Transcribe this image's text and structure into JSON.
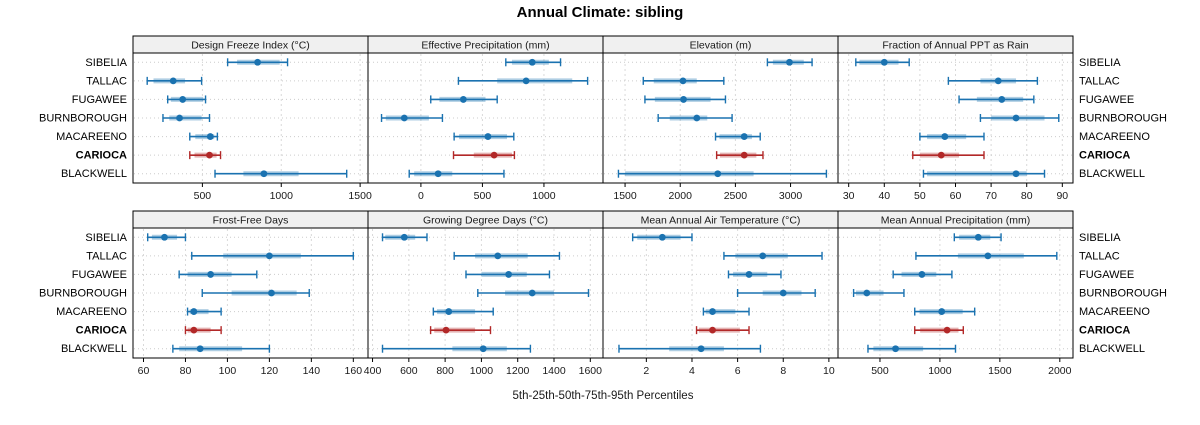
{
  "title": "Annual Climate: sibling",
  "caption": "5th-25th-50th-75th-95th Percentiles",
  "colors": {
    "primary": "#1a72b0",
    "highlight": "#b22828",
    "band_opacity": "0.35",
    "grid_h": "#cccccc",
    "grid_v": "#d9d9d9",
    "header_bg": "#f0f0f0",
    "panel_border": "#000000",
    "tick_text": "#1a1a1a",
    "header_text": "#1a1a1a"
  },
  "categories": [
    "SIBELIA",
    "TALLAC",
    "FUGAWEE",
    "BURNBOROUGH",
    "MACAREENO",
    "CARIOCA",
    "BLACKWELL"
  ],
  "highlighted_category": "CARIOCA",
  "chart_data": {
    "type": "dotplot-percentiles",
    "percentile_order": [
      "p5",
      "p25",
      "p50",
      "p75",
      "p95"
    ],
    "legend_position": "none",
    "grid": "on",
    "panels": [
      {
        "title": "Design Freeze Index (°C)",
        "row": 0,
        "col": 0,
        "xlim": [
          60,
          1550
        ],
        "ticks": [
          500,
          1000,
          1500
        ],
        "series": [
          {
            "name": "SIBELIA",
            "p": [
              660,
              720,
              850,
              990,
              1040
            ]
          },
          {
            "name": "TALLAC",
            "p": [
              150,
              190,
              315,
              390,
              495
            ]
          },
          {
            "name": "FUGAWEE",
            "p": [
              280,
              300,
              375,
              505,
              520
            ]
          },
          {
            "name": "BURNBOROUGH",
            "p": [
              250,
              290,
              355,
              495,
              545
            ]
          },
          {
            "name": "MACAREENO",
            "p": [
              420,
              455,
              550,
              575,
              595
            ]
          },
          {
            "name": "CARIOCA",
            "p": [
              420,
              450,
              545,
              590,
              615
            ]
          },
          {
            "name": "BLACKWELL",
            "p": [
              580,
              760,
              890,
              1110,
              1415
            ]
          }
        ]
      },
      {
        "title": "Effective Precipitation (mm)",
        "row": 0,
        "col": 1,
        "xlim": [
          -430,
          1480
        ],
        "ticks": [
          0,
          500,
          1000
        ],
        "series": [
          {
            "name": "SIBELIA",
            "p": [
              690,
              740,
              905,
              1040,
              1135
            ]
          },
          {
            "name": "TALLAC",
            "p": [
              305,
              620,
              855,
              1230,
              1355
            ]
          },
          {
            "name": "FUGAWEE",
            "p": [
              80,
              150,
              345,
              525,
              620
            ]
          },
          {
            "name": "BURNBOROUGH",
            "p": [
              -320,
              -285,
              -135,
              65,
              175
            ]
          },
          {
            "name": "MACAREENO",
            "p": [
              270,
              310,
              545,
              700,
              755
            ]
          },
          {
            "name": "CARIOCA",
            "p": [
              265,
              430,
              595,
              740,
              760
            ]
          },
          {
            "name": "BLACKWELL",
            "p": [
              -95,
              -55,
              140,
              255,
              675
            ]
          }
        ]
      },
      {
        "title": "Elevation (m)",
        "row": 0,
        "col": 2,
        "xlim": [
          1300,
          3430
        ],
        "ticks": [
          1500,
          2000,
          2500,
          3000
        ],
        "series": [
          {
            "name": "SIBELIA",
            "p": [
              2790,
              2840,
              2990,
              3120,
              3195
            ]
          },
          {
            "name": "TALLAC",
            "p": [
              1665,
              1760,
              2025,
              2150,
              2395
            ]
          },
          {
            "name": "FUGAWEE",
            "p": [
              1680,
              1770,
              2030,
              2275,
              2410
            ]
          },
          {
            "name": "BURNBOROUGH",
            "p": [
              1800,
              1905,
              2150,
              2245,
              2470
            ]
          },
          {
            "name": "MACAREENO",
            "p": [
              2320,
              2355,
              2580,
              2650,
              2725
            ]
          },
          {
            "name": "CARIOCA",
            "p": [
              2330,
              2360,
              2580,
              2690,
              2750
            ]
          },
          {
            "name": "BLACKWELL",
            "p": [
              1440,
              1500,
              2340,
              2665,
              3325
            ]
          }
        ]
      },
      {
        "title": "Fraction of Annual PPT as Rain",
        "row": 0,
        "col": 3,
        "xlim": [
          27,
          93
        ],
        "ticks": [
          30,
          40,
          50,
          60,
          70,
          80,
          90
        ],
        "series": [
          {
            "name": "SIBELIA",
            "p": [
              32,
              33,
              40,
              44,
              47
            ]
          },
          {
            "name": "TALLAC",
            "p": [
              58,
              67,
              72,
              77,
              83
            ]
          },
          {
            "name": "FUGAWEE",
            "p": [
              61,
              66,
              73,
              79,
              82
            ]
          },
          {
            "name": "BURNBOROUGH",
            "p": [
              67,
              70,
              77,
              85,
              89
            ]
          },
          {
            "name": "MACAREENO",
            "p": [
              50,
              52,
              57,
              63,
              68
            ]
          },
          {
            "name": "CARIOCA",
            "p": [
              48,
              50,
              56,
              61,
              68
            ]
          },
          {
            "name": "BLACKWELL",
            "p": [
              51,
              52,
              77,
              80,
              85
            ]
          }
        ]
      },
      {
        "title": "Frost-Free Days",
        "row": 1,
        "col": 0,
        "xlim": [
          55,
          167
        ],
        "ticks": [
          60,
          80,
          100,
          120,
          140,
          160
        ],
        "series": [
          {
            "name": "SIBELIA",
            "p": [
              62,
              64,
              70,
              76,
              80
            ]
          },
          {
            "name": "TALLAC",
            "p": [
              83,
              98,
              120,
              135,
              160
            ]
          },
          {
            "name": "FUGAWEE",
            "p": [
              77,
              81,
              92,
              102,
              114
            ]
          },
          {
            "name": "BURNBOROUGH",
            "p": [
              88,
              102,
              121,
              133,
              139
            ]
          },
          {
            "name": "MACAREENO",
            "p": [
              81,
              82,
              84,
              91,
              97
            ]
          },
          {
            "name": "CARIOCA",
            "p": [
              80,
              81,
              84,
              92,
              97
            ]
          },
          {
            "name": "BLACKWELL",
            "p": [
              74,
              77,
              87,
              107,
              120
            ]
          }
        ]
      },
      {
        "title": "Growing Degree Days (°C)",
        "row": 1,
        "col": 1,
        "xlim": [
          375,
          1670
        ],
        "ticks": [
          400,
          600,
          800,
          1000,
          1200,
          1400,
          1600
        ],
        "series": [
          {
            "name": "SIBELIA",
            "p": [
              455,
              470,
              575,
              635,
              700
            ]
          },
          {
            "name": "TALLAC",
            "p": [
              850,
              965,
              1090,
              1255,
              1430
            ]
          },
          {
            "name": "FUGAWEE",
            "p": [
              915,
              1000,
              1150,
              1250,
              1375
            ]
          },
          {
            "name": "BURNBOROUGH",
            "p": [
              980,
              1130,
              1280,
              1400,
              1590
            ]
          },
          {
            "name": "MACAREENO",
            "p": [
              735,
              755,
              820,
              965,
              1065
            ]
          },
          {
            "name": "CARIOCA",
            "p": [
              720,
              740,
              805,
              965,
              1050
            ]
          },
          {
            "name": "BLACKWELL",
            "p": [
              455,
              840,
              1010,
              1140,
              1270
            ]
          }
        ]
      },
      {
        "title": "Mean Annual Air Temperature (°C)",
        "row": 1,
        "col": 2,
        "xlim": [
          0.1,
          10.4
        ],
        "ticks": [
          2,
          4,
          6,
          8,
          10
        ],
        "series": [
          {
            "name": "SIBELIA",
            "p": [
              1.4,
              1.6,
              2.7,
              3.5,
              4.0
            ]
          },
          {
            "name": "TALLAC",
            "p": [
              5.4,
              5.9,
              7.1,
              8.2,
              9.7
            ]
          },
          {
            "name": "FUGAWEE",
            "p": [
              5.6,
              5.8,
              6.5,
              7.3,
              7.9
            ]
          },
          {
            "name": "BURNBOROUGH",
            "p": [
              6.0,
              7.1,
              8.0,
              8.8,
              9.4
            ]
          },
          {
            "name": "MACAREENO",
            "p": [
              4.5,
              4.6,
              4.9,
              5.9,
              6.5
            ]
          },
          {
            "name": "CARIOCA",
            "p": [
              4.2,
              4.3,
              4.9,
              6.1,
              6.5
            ]
          },
          {
            "name": "BLACKWELL",
            "p": [
              0.8,
              3.0,
              4.4,
              5.4,
              7.0
            ]
          }
        ]
      },
      {
        "title": "Mean Annual Precipitation (mm)",
        "row": 1,
        "col": 3,
        "xlim": [
          150,
          2110
        ],
        "ticks": [
          500,
          1000,
          1500,
          2000
        ],
        "series": [
          {
            "name": "SIBELIA",
            "p": [
              1120,
              1160,
              1320,
              1420,
              1510
            ]
          },
          {
            "name": "TALLAC",
            "p": [
              800,
              1150,
              1400,
              1700,
              1975
            ]
          },
          {
            "name": "FUGAWEE",
            "p": [
              610,
              680,
              850,
              970,
              1100
            ]
          },
          {
            "name": "BURNBOROUGH",
            "p": [
              280,
              300,
              390,
              530,
              700
            ]
          },
          {
            "name": "MACAREENO",
            "p": [
              790,
              830,
              1015,
              1190,
              1290
            ]
          },
          {
            "name": "CARIOCA",
            "p": [
              790,
              835,
              1060,
              1155,
              1195
            ]
          },
          {
            "name": "BLACKWELL",
            "p": [
              400,
              445,
              630,
              860,
              1130
            ]
          }
        ]
      }
    ]
  }
}
